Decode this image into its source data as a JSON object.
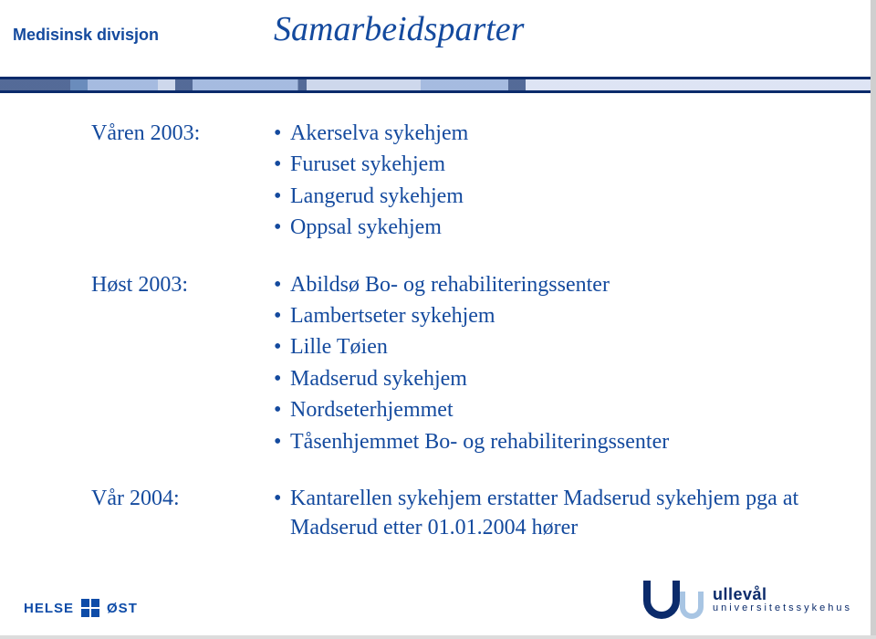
{
  "header_label": "Medisinsk divisjon",
  "title": "Samarbeidsparter",
  "colors": {
    "primary": "#144a9e",
    "text_blue": "#144a9e",
    "helse_blue": "#0e4ca8",
    "ulleval_dark": "#0b2b6b",
    "ulleval_light": "#a8c5e3"
  },
  "font_sizes": {
    "header_label": 18,
    "title": 38,
    "period": 24,
    "bullet": 24,
    "helse": 15,
    "ulleval_l1": 18,
    "ulleval_l2": 11
  },
  "sections": [
    {
      "period": "Våren 2003:",
      "items": [
        "Akerselva sykehjem",
        "Furuset sykehjem",
        "Langerud sykehjem",
        "Oppsal sykehjem"
      ]
    },
    {
      "period": "Høst 2003:",
      "items": [
        "Abildsø Bo- og rehabiliteringssenter",
        "Lambertseter sykehjem",
        "Lille Tøien",
        "Madserud sykehjem",
        "Nordseterhjemmet",
        "Tåsenhjemmet Bo- og rehabiliteringssenter"
      ]
    },
    {
      "period": "Vår 2004:",
      "items": [
        "Kantarellen sykehjem erstatter Madserud sykehjem pga at Madserud etter 01.01.2004 hører"
      ]
    }
  ],
  "footer": {
    "helse_left": "HELSE",
    "helse_right": "ØST",
    "ulleval_l1": "ullevål",
    "ulleval_l2": "universitetssykehus"
  }
}
